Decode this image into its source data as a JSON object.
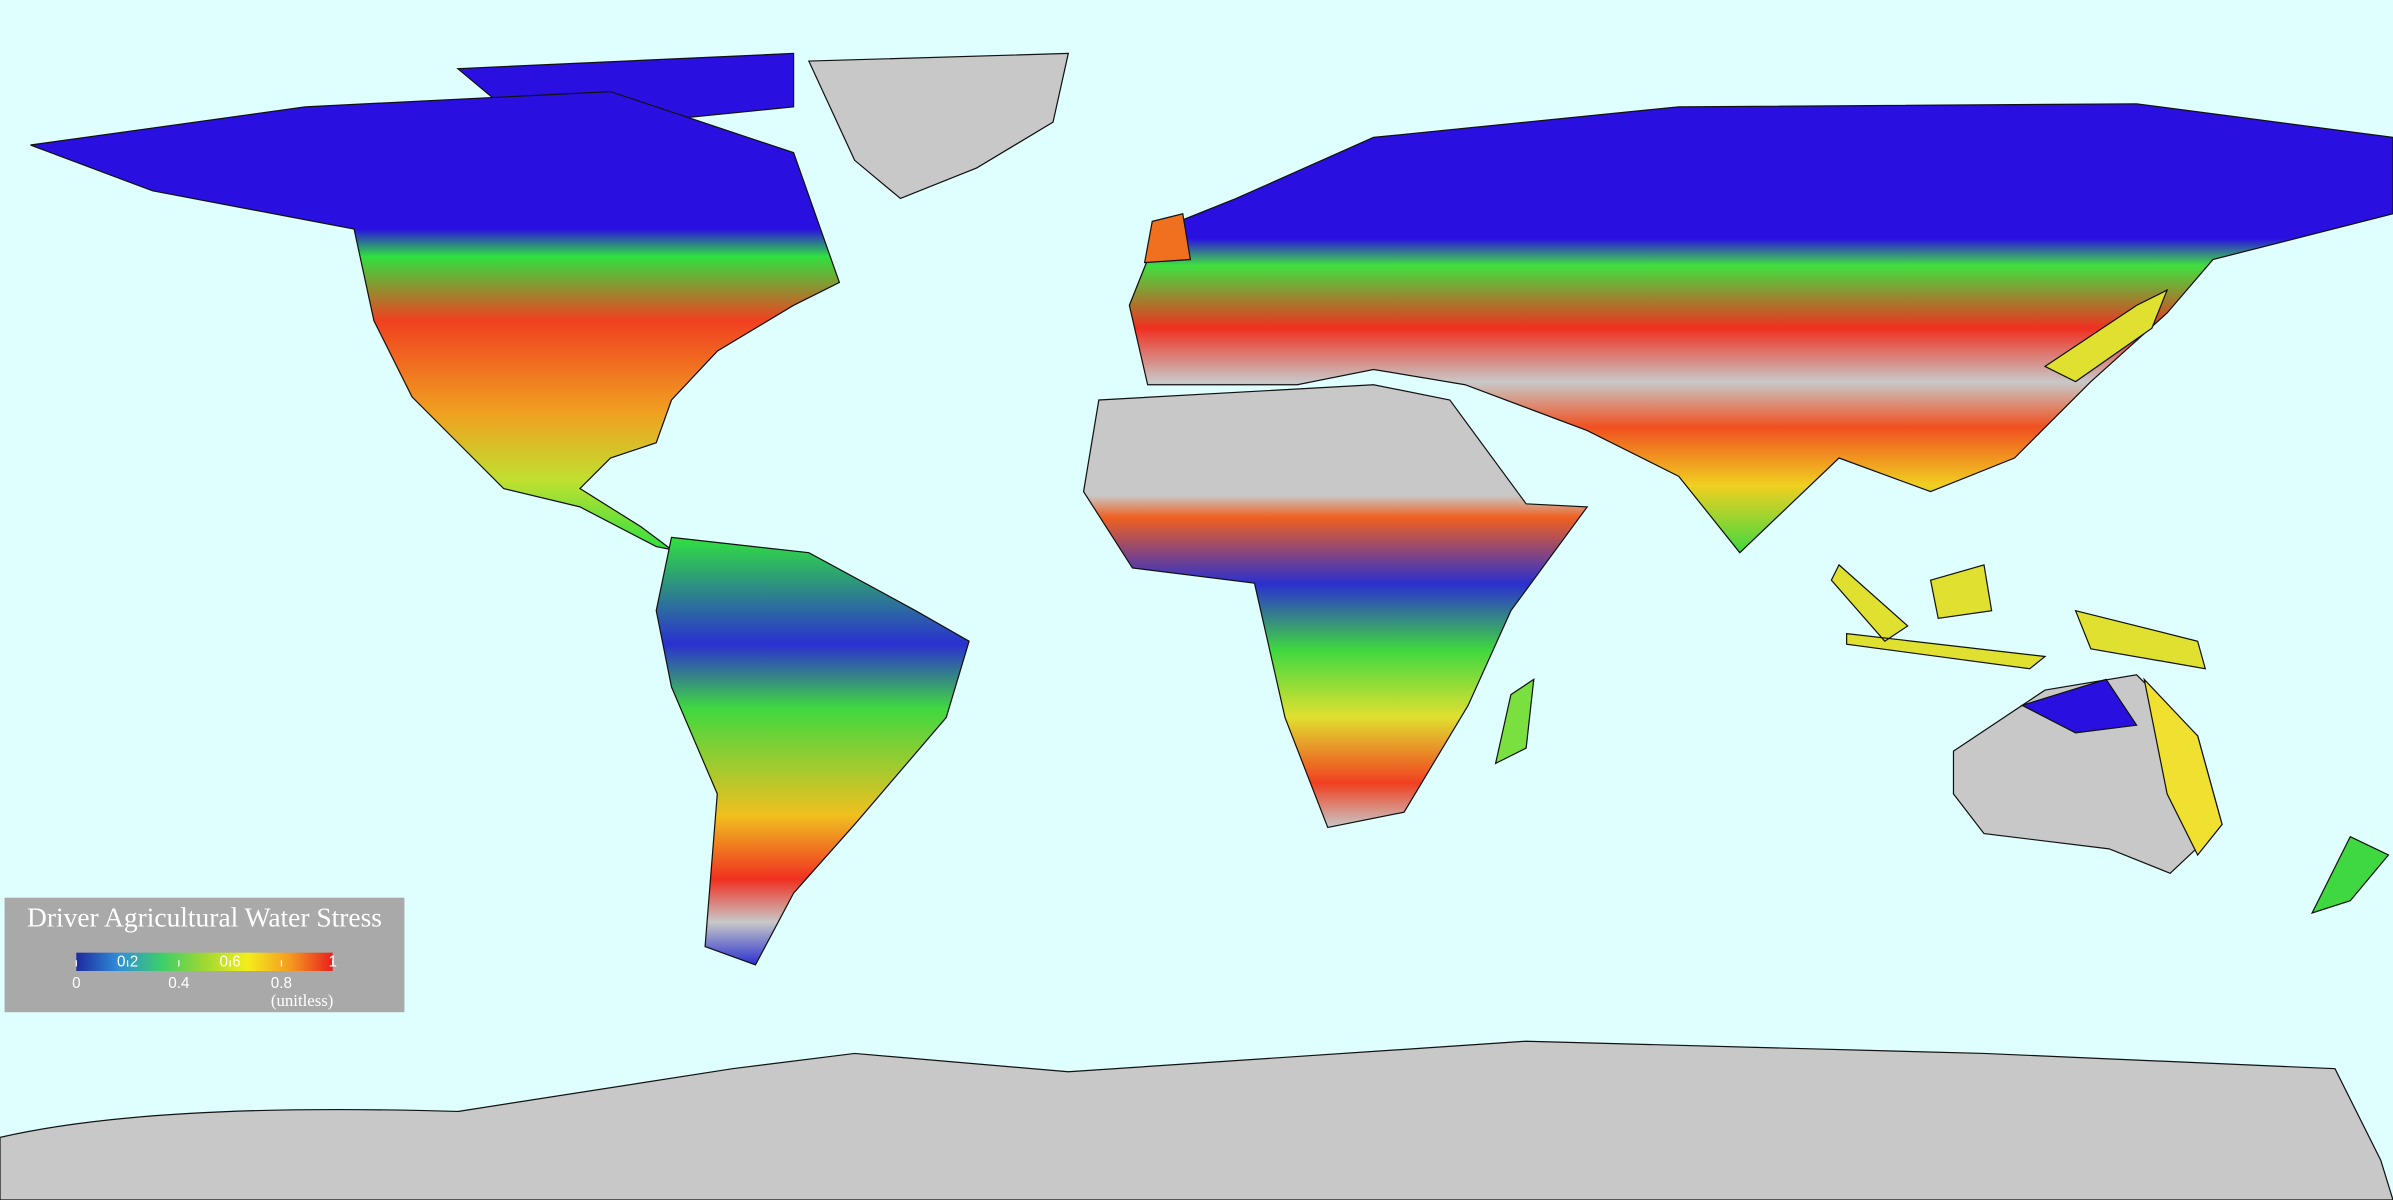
{
  "legend": {
    "title": "Driver Agricultural Water Stress",
    "ticks": [
      0,
      0.2,
      0.4,
      0.6,
      0.8,
      1
    ],
    "unit": "(unitless)",
    "colors": [
      "#1e2a9e",
      "#2f8fd8",
      "#3ccf6a",
      "#9fd832",
      "#f4ee1a",
      "#f59a20",
      "#e8201e"
    ]
  }
}
